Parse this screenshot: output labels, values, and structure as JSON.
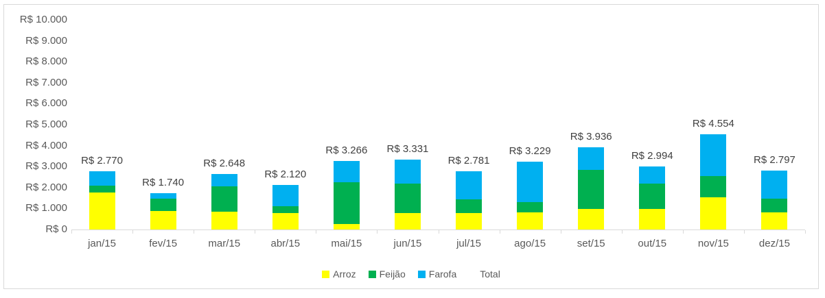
{
  "chart_data": {
    "type": "bar",
    "stacked": true,
    "title": "",
    "xlabel": "",
    "ylabel": "",
    "ylim": [
      0,
      10000
    ],
    "grid": false,
    "legend_position": "bottom-center",
    "categories": [
      "jan/15",
      "fev/15",
      "mar/15",
      "abr/15",
      "mai/15",
      "jun/15",
      "jul/15",
      "ago/15",
      "set/15",
      "out/15",
      "nov/15",
      "dez/15"
    ],
    "series": [
      {
        "name": "Arroz",
        "color": "#FFFF00",
        "values": [
          1770,
          880,
          850,
          800,
          270,
          790,
          790,
          820,
          980,
          980,
          1540,
          820
        ]
      },
      {
        "name": "Feijão",
        "color": "#00B050",
        "values": [
          330,
          590,
          1210,
          300,
          2000,
          1410,
          650,
          500,
          1860,
          1210,
          1010,
          650
        ]
      },
      {
        "name": "Farofa",
        "color": "#00B0F0",
        "values": [
          670,
          270,
          588,
          1020,
          996,
          1131,
          1341,
          1909,
          1096,
          804,
          2004,
          1327
        ]
      }
    ],
    "totals": [
      2770,
      1740,
      2648,
      2120,
      3266,
      3331,
      2781,
      3229,
      3936,
      2994,
      4554,
      2797
    ],
    "total_labels": [
      "R$ 2.770",
      "R$ 1.740",
      "R$ 2.648",
      "R$ 2.120",
      "R$ 3.266",
      "R$ 3.331",
      "R$ 2.781",
      "R$ 3.229",
      "R$ 3.936",
      "R$ 2.994",
      "R$ 4.554",
      "R$ 2.797"
    ],
    "y_ticks": [
      {
        "value": 0,
        "label": "R$ 0"
      },
      {
        "value": 1000,
        "label": "R$ 1.000"
      },
      {
        "value": 2000,
        "label": "R$ 2.000"
      },
      {
        "value": 3000,
        "label": "R$ 3.000"
      },
      {
        "value": 4000,
        "label": "R$ 4.000"
      },
      {
        "value": 5000,
        "label": "R$ 5.000"
      },
      {
        "value": 6000,
        "label": "R$ 6.000"
      },
      {
        "value": 7000,
        "label": "R$ 7.000"
      },
      {
        "value": 8000,
        "label": "R$ 8.000"
      },
      {
        "value": 9000,
        "label": "R$ 9.000"
      },
      {
        "value": 10000,
        "label": "R$ 10.000"
      }
    ],
    "legend": [
      {
        "label": "Arroz",
        "color": "#FFFF00"
      },
      {
        "label": "Feijão",
        "color": "#00B050"
      },
      {
        "label": "Farofa",
        "color": "#00B0F0"
      },
      {
        "label": "Total",
        "color": null
      }
    ]
  },
  "colors": {
    "chart_border": "#D9D9D9",
    "axis_line": "#D9D9D9",
    "axis_text": "#595959",
    "data_label_text": "#404040",
    "background": "#FFFFFF"
  }
}
